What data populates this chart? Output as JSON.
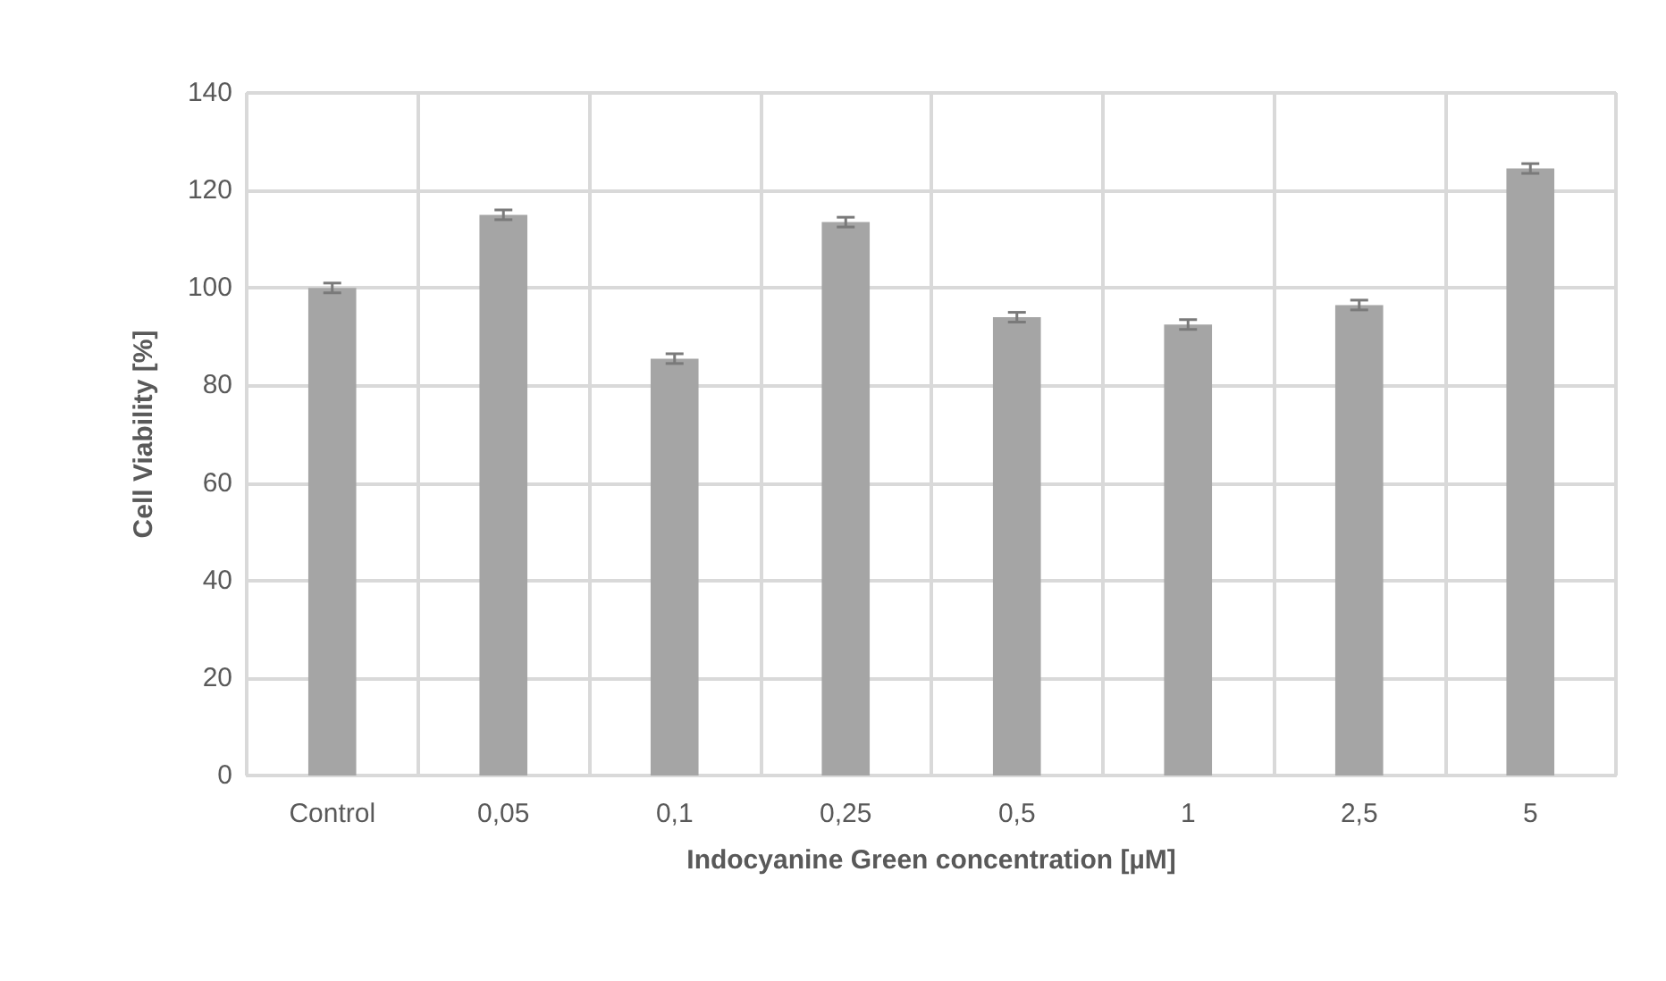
{
  "chart_data": {
    "type": "bar",
    "xlabel": "Indocyanine Green concentration [µM]",
    "ylabel": "Cell Viability [%]",
    "categories": [
      "Control",
      "0,05",
      "0,1",
      "0,25",
      "0,5",
      "1",
      "2,5",
      "5"
    ],
    "values": [
      100,
      115,
      85.5,
      113.5,
      94,
      92.5,
      96.5,
      124.5
    ],
    "errors": [
      1,
      1,
      1,
      1,
      1,
      1,
      1,
      1
    ],
    "color": "#a5a5a5",
    "ylim": [
      0,
      140
    ],
    "yticks": [
      0,
      20,
      40,
      60,
      80,
      100,
      120,
      140
    ],
    "grid": true
  }
}
